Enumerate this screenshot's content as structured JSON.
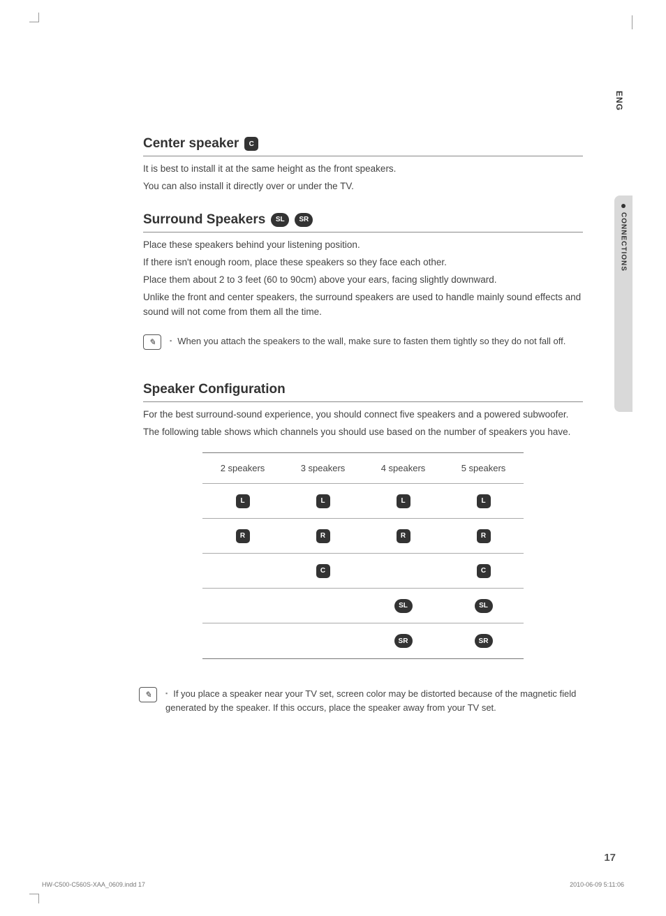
{
  "lang_tab": "ENG",
  "section_tab": "CONNECTIONS",
  "colors": {
    "text": "#333333",
    "subtext": "#444444",
    "rule": "#888888",
    "tab_bg": "#d9d9d9",
    "badge_bg": "#333333",
    "badge_fg": "#ffffff"
  },
  "sections": {
    "center": {
      "title": "Center speaker",
      "badges": [
        "C"
      ],
      "lines": [
        "It is best to install it at the same height as the front speakers.",
        "You can also install it directly over or under the TV."
      ]
    },
    "surround": {
      "title": "Surround Speakers",
      "badges": [
        "SL",
        "SR"
      ],
      "lines": [
        "Place these speakers behind your listening position.",
        "If there isn't enough room, place these speakers so they face each other.",
        "Place them about 2 to 3 feet (60 to 90cm) above your ears, facing slightly downward.",
        "Unlike the front and center speakers, the surround speakers are used to handle mainly sound effects and sound will not come from them all the time."
      ]
    },
    "note1": "When you attach the speakers to the wall, make sure to fasten them tightly so they do not fall off.",
    "config": {
      "title": "Speaker Configuration",
      "intro1": "For the best surround-sound experience, you should connect five speakers and a powered subwoofer.",
      "intro2": "The following table shows which channels you should use based on the number of speakers you have.",
      "headers": [
        "2 speakers",
        "3  speakers",
        "4 speakers",
        "5 speakers"
      ],
      "rows": [
        [
          "L",
          "L",
          "L",
          "L"
        ],
        [
          "R",
          "R",
          "R",
          "R"
        ],
        [
          "",
          "C",
          "",
          "C"
        ],
        [
          "",
          "",
          "SL",
          "SL"
        ],
        [
          "",
          "",
          "SR",
          "SR"
        ]
      ]
    },
    "note2": "If you place a speaker near your TV set, screen color may be distorted because of the magnetic field generated by the speaker. If this occurs, place the speaker away from your TV set."
  },
  "page_number": "17",
  "footer": {
    "file": "HW-C500-C560S-XAA_0609.indd   17",
    "timestamp": "2010-06-09    5:11:06"
  }
}
